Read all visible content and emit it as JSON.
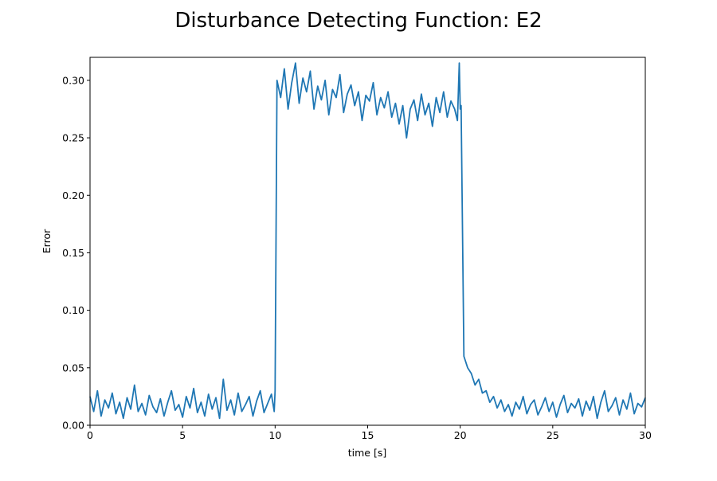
{
  "chart_data": {
    "type": "line",
    "title": "Disturbance Detecting Function: E2",
    "xlabel": "time [s]",
    "ylabel": "Error",
    "xlim": [
      0,
      30
    ],
    "ylim": [
      0,
      0.32
    ],
    "xticks": [
      0,
      5,
      10,
      15,
      20,
      25,
      30
    ],
    "xtick_labels": [
      "0",
      "5",
      "10",
      "15",
      "20",
      "25",
      "30"
    ],
    "yticks": [
      0.0,
      0.05,
      0.1,
      0.15,
      0.2,
      0.25,
      0.3
    ],
    "ytick_labels": [
      "0.00",
      "0.05",
      "0.10",
      "0.15",
      "0.20",
      "0.25",
      "0.30"
    ],
    "grid": false,
    "series": [
      {
        "color": "#1f77b4",
        "x": [
          0,
          0.2,
          0.4,
          0.6,
          0.8,
          1.0,
          1.2,
          1.4,
          1.6,
          1.8,
          2.0,
          2.2,
          2.4,
          2.6,
          2.8,
          3.0,
          3.2,
          3.4,
          3.6,
          3.8,
          4.0,
          4.2,
          4.4,
          4.6,
          4.8,
          5.0,
          5.2,
          5.4,
          5.6,
          5.8,
          6.0,
          6.2,
          6.4,
          6.6,
          6.8,
          7.0,
          7.2,
          7.4,
          7.6,
          7.8,
          8.0,
          8.2,
          8.4,
          8.6,
          8.8,
          9.0,
          9.2,
          9.4,
          9.6,
          9.8,
          9.95,
          10.0,
          10.1,
          10.3,
          10.5,
          10.7,
          10.9,
          11.1,
          11.3,
          11.5,
          11.7,
          11.9,
          12.1,
          12.3,
          12.5,
          12.7,
          12.9,
          13.1,
          13.3,
          13.5,
          13.7,
          13.9,
          14.1,
          14.3,
          14.5,
          14.7,
          14.9,
          15.1,
          15.3,
          15.5,
          15.7,
          15.9,
          16.1,
          16.3,
          16.5,
          16.7,
          16.9,
          17.1,
          17.3,
          17.5,
          17.7,
          17.9,
          18.1,
          18.3,
          18.5,
          18.7,
          18.9,
          19.1,
          19.3,
          19.5,
          19.7,
          19.85,
          19.95,
          20.0,
          20.05,
          20.2,
          20.4,
          20.6,
          20.8,
          21.0,
          21.2,
          21.4,
          21.6,
          21.8,
          22.0,
          22.2,
          22.4,
          22.6,
          22.8,
          23.0,
          23.2,
          23.4,
          23.6,
          23.8,
          24.0,
          24.2,
          24.4,
          24.6,
          24.8,
          25.0,
          25.2,
          25.4,
          25.6,
          25.8,
          26.0,
          26.2,
          26.4,
          26.6,
          26.8,
          27.0,
          27.2,
          27.4,
          27.6,
          27.8,
          28.0,
          28.2,
          28.4,
          28.6,
          28.8,
          29.0,
          29.2,
          29.4,
          29.6,
          29.8,
          30.0
        ],
        "y": [
          0.025,
          0.012,
          0.03,
          0.008,
          0.022,
          0.015,
          0.028,
          0.01,
          0.02,
          0.006,
          0.024,
          0.014,
          0.035,
          0.012,
          0.019,
          0.009,
          0.026,
          0.016,
          0.011,
          0.023,
          0.008,
          0.02,
          0.03,
          0.013,
          0.018,
          0.007,
          0.025,
          0.015,
          0.032,
          0.011,
          0.02,
          0.008,
          0.027,
          0.014,
          0.024,
          0.006,
          0.04,
          0.013,
          0.022,
          0.009,
          0.028,
          0.012,
          0.018,
          0.025,
          0.008,
          0.021,
          0.03,
          0.011,
          0.019,
          0.027,
          0.012,
          0.03,
          0.3,
          0.285,
          0.31,
          0.275,
          0.298,
          0.315,
          0.28,
          0.302,
          0.29,
          0.308,
          0.275,
          0.295,
          0.283,
          0.3,
          0.27,
          0.292,
          0.285,
          0.305,
          0.272,
          0.288,
          0.296,
          0.278,
          0.29,
          0.265,
          0.287,
          0.282,
          0.298,
          0.27,
          0.285,
          0.276,
          0.29,
          0.268,
          0.28,
          0.262,
          0.278,
          0.25,
          0.275,
          0.283,
          0.265,
          0.288,
          0.27,
          0.28,
          0.26,
          0.285,
          0.272,
          0.29,
          0.268,
          0.282,
          0.275,
          0.265,
          0.315,
          0.275,
          0.278,
          0.06,
          0.05,
          0.045,
          0.035,
          0.04,
          0.028,
          0.03,
          0.02,
          0.025,
          0.015,
          0.022,
          0.012,
          0.018,
          0.008,
          0.02,
          0.014,
          0.025,
          0.01,
          0.018,
          0.022,
          0.009,
          0.016,
          0.024,
          0.012,
          0.02,
          0.007,
          0.018,
          0.026,
          0.011,
          0.019,
          0.015,
          0.023,
          0.008,
          0.021,
          0.013,
          0.025,
          0.006,
          0.02,
          0.03,
          0.012,
          0.017,
          0.024,
          0.009,
          0.022,
          0.014,
          0.028,
          0.01,
          0.019,
          0.016,
          0.024
        ]
      }
    ]
  }
}
